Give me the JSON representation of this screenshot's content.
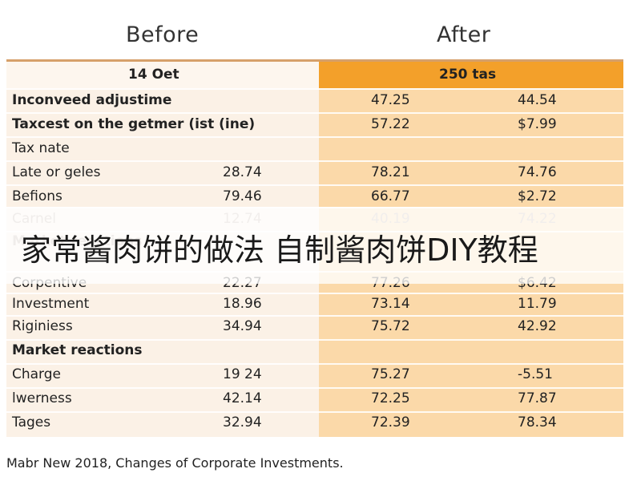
{
  "headers": {
    "before": "Before",
    "after": "After"
  },
  "table_header": {
    "left": "14 Oet",
    "right": "250 tas"
  },
  "rows": [
    {
      "label": "Inconveed adjustime",
      "bold": true,
      "v1": "",
      "v2": "47.25",
      "v3": "44.54"
    },
    {
      "label": "Taxcest on the getmer (ist (ine)",
      "bold": true,
      "v1": "",
      "v2": "57.22",
      "v3": "$7.99"
    },
    {
      "label": "Tax nate",
      "bold": false,
      "v1": "",
      "v2": "",
      "v3": ""
    },
    {
      "label": "Late or geles",
      "bold": false,
      "v1": "28.74",
      "v2": "78.21",
      "v3": "74.76"
    },
    {
      "label": "Befions",
      "bold": false,
      "v1": "79.46",
      "v2": "66.77",
      "v3": "$2.72"
    },
    {
      "label": "Carnel",
      "bold": false,
      "faded": true,
      "v1": "12.74",
      "v2": "40.19",
      "v3": "74.22"
    },
    {
      "label": "Market reactions",
      "bold": true,
      "faded": true,
      "v1": "",
      "v2": "",
      "v3": ""
    },
    {
      "label": "Corpentive",
      "bold": false,
      "v1": "22.27",
      "v2": "77.26",
      "v3": "$6.42"
    },
    {
      "label": "Investment",
      "bold": false,
      "v1": "18.96",
      "v2": "73.14",
      "v3": "11.79"
    },
    {
      "label": "Riginiess",
      "bold": false,
      "v1": "34.94",
      "v2": "75.72",
      "v3": "42.92"
    },
    {
      "label": "Market reactions",
      "bold": true,
      "v1": "",
      "v2": "",
      "v3": ""
    },
    {
      "label": "Charge",
      "bold": false,
      "v1": "19 24",
      "v2": "75.27",
      "v3": "-5.51"
    },
    {
      "label": "lwerness",
      "bold": false,
      "v1": "42.14",
      "v2": "72.25",
      "v3": "77.87"
    },
    {
      "label": "Tages",
      "bold": false,
      "v1": "32.94",
      "v2": "72.39",
      "v3": "78.34"
    }
  ],
  "banner": {
    "text": "家常酱肉饼的做法 自制酱肉饼DIY教程"
  },
  "caption": "Mabr New 2018, Changes of Corporate Investments."
}
